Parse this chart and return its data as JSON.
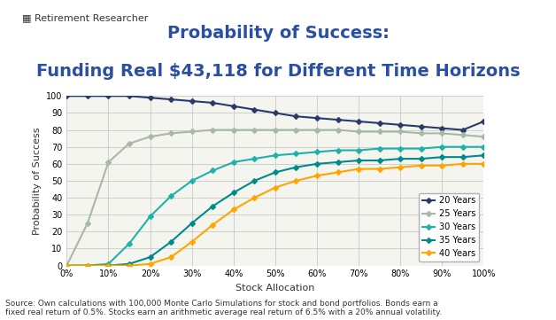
{
  "title_line1": "Probability of Success:",
  "title_line2": "Funding Real $43,118 for Different Time Horizons",
  "xlabel": "Stock Allocation",
  "ylabel": "Probability of Success",
  "logo_text": "Retirement Researcher",
  "source_text": "Source: Own calculations with 100,000 Monte Carlo Simulations for stock and bond portfolios. Bonds earn a\nfixed real return of 0.5%. Stocks earn an arithmetic average real return of 6.5% with a 20% annual volatility.",
  "xlim": [
    0,
    1.0
  ],
  "ylim": [
    0,
    100
  ],
  "xticks": [
    0,
    0.1,
    0.2,
    0.3,
    0.4,
    0.5,
    0.6,
    0.7,
    0.8,
    0.9,
    1.0
  ],
  "yticks": [
    0,
    10,
    20,
    30,
    40,
    50,
    60,
    70,
    80,
    90,
    100
  ],
  "series": [
    {
      "label": "20 Years",
      "color": "#2b3a6b",
      "marker": "D",
      "values": [
        100,
        100,
        100,
        100,
        99,
        98,
        97,
        96,
        94,
        92,
        90,
        88,
        87,
        86,
        85,
        84,
        83,
        82,
        81,
        80,
        85
      ]
    },
    {
      "label": "25 Years",
      "color": "#a8b8a8",
      "marker": "D",
      "values": [
        0,
        25,
        61,
        72,
        76,
        78,
        79,
        80,
        80,
        80,
        80,
        80,
        80,
        80,
        79,
        79,
        79,
        78,
        78,
        77,
        76
      ]
    },
    {
      "label": "30 Years",
      "color": "#20b2aa",
      "marker": "D",
      "values": [
        0,
        0,
        1,
        13,
        29,
        41,
        50,
        56,
        61,
        63,
        65,
        66,
        67,
        68,
        68,
        69,
        69,
        69,
        70,
        70,
        70
      ]
    },
    {
      "label": "35 Years",
      "color": "#008b8b",
      "marker": "D",
      "values": [
        0,
        0,
        0,
        1,
        5,
        14,
        25,
        35,
        43,
        50,
        55,
        58,
        60,
        61,
        62,
        62,
        63,
        63,
        64,
        64,
        65
      ]
    },
    {
      "label": "40 Years",
      "color": "#ffa500",
      "marker": "D",
      "values": [
        0,
        0,
        0,
        0,
        1,
        5,
        14,
        24,
        33,
        40,
        46,
        50,
        53,
        55,
        57,
        57,
        58,
        59,
        59,
        60,
        60
      ]
    }
  ],
  "title_color": "#2b4fa0",
  "background_color": "#f5f5f0",
  "grid_color": "#c0c0c0",
  "title_fontsize": 14,
  "axis_label_fontsize": 8,
  "tick_fontsize": 7,
  "legend_fontsize": 7,
  "source_fontsize": 6.5
}
